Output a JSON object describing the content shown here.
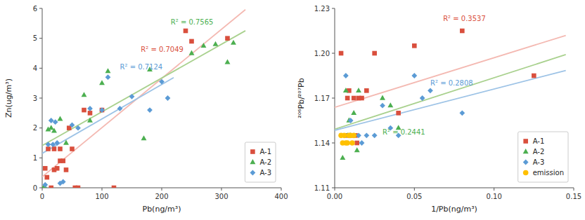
{
  "chart_data": [
    {
      "type": "scatter",
      "x_label": "Pb(ng/m³)",
      "y_label": "Zn(ug/m³)",
      "xlim": [
        0,
        400
      ],
      "ylim": [
        0,
        6
      ],
      "xticks": [
        0,
        100,
        200,
        300,
        400
      ],
      "yticks": [
        0,
        1,
        2,
        3,
        4,
        5,
        6
      ],
      "grid": false,
      "legend": "lower right",
      "series": [
        {
          "name": "A-1",
          "type": "scatter",
          "color": "#d94f3d",
          "marker": "square",
          "x": [
            5,
            8,
            10,
            15,
            20,
            20,
            25,
            30,
            30,
            35,
            40,
            45,
            50,
            55,
            60,
            70,
            80,
            100,
            120,
            240,
            250,
            310
          ],
          "values": [
            0.65,
            0.35,
            1.3,
            0.0,
            0.6,
            1.3,
            0.65,
            0.9,
            1.3,
            0.9,
            0.6,
            2.0,
            1.3,
            0.0,
            0.0,
            2.6,
            2.5,
            2.6,
            0.0,
            5.25,
            4.9,
            5.0
          ]
        },
        {
          "name": "A-2",
          "type": "scatter",
          "color": "#4caf50",
          "marker": "triangle",
          "x": [
            2,
            5,
            10,
            15,
            20,
            30,
            40,
            70,
            80,
            100,
            110,
            170,
            180,
            250,
            270,
            290,
            310,
            320
          ],
          "values": [
            0.0,
            0.0,
            1.95,
            2.0,
            1.9,
            2.3,
            1.5,
            3.1,
            2.25,
            3.5,
            3.9,
            1.65,
            3.95,
            4.5,
            4.75,
            4.8,
            4.2,
            4.85
          ]
        },
        {
          "name": "A-3",
          "type": "scatter",
          "color": "#5b9bd5",
          "marker": "diamond",
          "x": [
            5,
            10,
            15,
            18,
            22,
            25,
            30,
            35,
            50,
            60,
            80,
            100,
            110,
            130,
            150,
            180,
            200,
            210
          ],
          "values": [
            0.1,
            1.45,
            2.25,
            1.45,
            2.2,
            1.5,
            0.15,
            0.2,
            2.1,
            2.0,
            2.65,
            2.6,
            3.7,
            2.65,
            3.05,
            2.6,
            3.55,
            3.0
          ]
        },
        {
          "type": "line",
          "color": "#f4b9b2",
          "x": [
            0,
            340
          ],
          "values": [
            0.3681,
            5.9583
          ]
        },
        {
          "type": "line",
          "color": "#a9d18e",
          "x": [
            0,
            340
          ],
          "values": [
            1.4138,
            5.2526
          ]
        },
        {
          "type": "line",
          "color": "#9dc3e6",
          "x": [
            0,
            220
          ],
          "values": [
            1.1514,
            3.686
          ]
        }
      ],
      "annotations": [
        {
          "text": "R² = 0.7049",
          "x": 165,
          "y": 4.55,
          "color": "#d94f3d"
        },
        {
          "text": "R² = 0.7565",
          "x": 215,
          "y": 5.45,
          "color": "#4caf50"
        },
        {
          "text": "R² = 0.7124",
          "x": 130,
          "y": 3.95,
          "color": "#5b9bd5"
        }
      ]
    },
    {
      "type": "scatter",
      "x_label": "1/Pb(ng/m³)",
      "y_label": "²⁰⁶Pb/²⁰⁷Pb",
      "xlim": [
        0,
        0.15
      ],
      "ylim": [
        1.11,
        1.23
      ],
      "xticks": [
        {
          "value": 0,
          "label": "0.00"
        },
        0.05,
        {
          "value": 0.1,
          "label": "0.10"
        },
        0.15
      ],
      "yticks": [
        1.11,
        1.14,
        1.17,
        {
          "value": 1.2,
          "label": "1.20"
        },
        1.23
      ],
      "grid": false,
      "legend": "lower right",
      "series": [
        {
          "name": "A-1",
          "type": "scatter",
          "color": "#d94f3d",
          "marker": "square",
          "x": [
            0.004,
            0.007,
            0.008,
            0.009,
            0.01,
            0.012,
            0.013,
            0.014,
            0.015,
            0.017,
            0.02,
            0.025,
            0.04,
            0.05,
            0.08,
            0.125
          ],
          "values": [
            1.2,
            1.145,
            1.17,
            1.175,
            1.145,
            1.17,
            1.145,
            1.14,
            1.17,
            1.17,
            1.175,
            1.2,
            1.16,
            1.205,
            1.215,
            1.185
          ]
        },
        {
          "name": "A-2",
          "type": "scatter",
          "color": "#4caf50",
          "marker": "triangle",
          "x": [
            0.005,
            0.007,
            0.008,
            0.009,
            0.01,
            0.012,
            0.014,
            0.015,
            0.03,
            0.035,
            0.04
          ],
          "values": [
            1.13,
            1.175,
            1.145,
            1.155,
            1.145,
            1.16,
            1.135,
            1.175,
            1.17,
            1.165,
            1.15
          ]
        },
        {
          "name": "A-3",
          "type": "scatter",
          "color": "#5b9bd5",
          "marker": "diamond",
          "x": [
            0.007,
            0.009,
            0.01,
            0.012,
            0.015,
            0.017,
            0.02,
            0.025,
            0.03,
            0.035,
            0.04,
            0.05,
            0.055,
            0.06,
            0.08
          ],
          "values": [
            1.185,
            1.145,
            1.155,
            1.145,
            1.145,
            1.14,
            1.145,
            1.145,
            1.165,
            1.15,
            1.145,
            1.185,
            1.17,
            1.175,
            1.16
          ]
        },
        {
          "name": "emission",
          "type": "scatter",
          "color": "#ffc000",
          "marker": "circle",
          "x": [
            0.004,
            0.005,
            0.006,
            0.007,
            0.008,
            0.009,
            0.01,
            0.011,
            0.012
          ],
          "values": [
            1.145,
            1.14,
            1.145,
            1.14,
            1.14,
            1.145,
            1.145,
            1.14,
            1.145
          ]
        },
        {
          "type": "line",
          "color": "#f4b9b2",
          "x": [
            0,
            0.145
          ],
          "values": [
            1.16382,
            1.2119
          ]
        },
        {
          "type": "line",
          "color": "#a9d18e",
          "x": [
            0,
            0.145
          ],
          "values": [
            1.14922,
            1.19908
          ]
        },
        {
          "type": "line",
          "color": "#9dc3e6",
          "x": [
            0,
            0.145
          ],
          "values": [
            1.14843,
            1.18851
          ]
        }
      ],
      "annotations": [
        {
          "text": "R² = 0.3537",
          "x": 0.068,
          "y": 1.2215,
          "color": "#d94f3d"
        },
        {
          "text": "R² = 0.2441",
          "x": 0.03,
          "y": 1.1455,
          "color": "#4caf50"
        },
        {
          "text": "R² = 0.2808",
          "x": 0.06,
          "y": 1.1785,
          "color": "#5b9bd5"
        }
      ]
    }
  ]
}
